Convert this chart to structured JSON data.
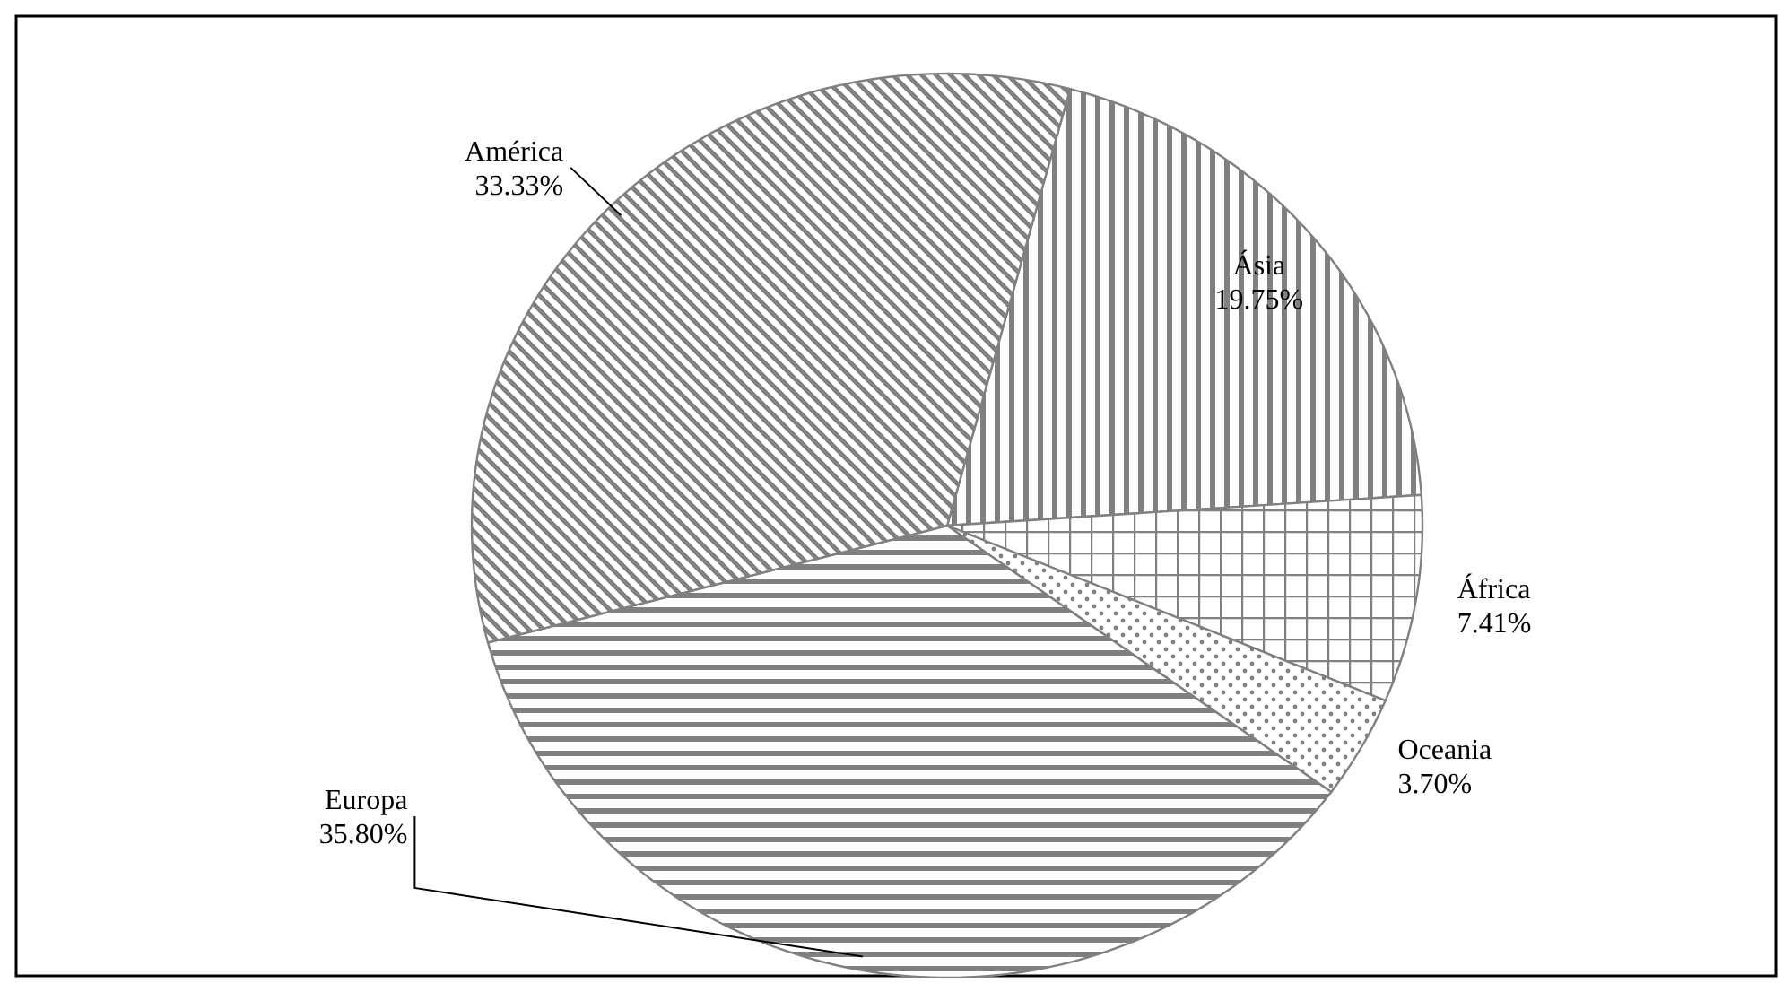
{
  "chart_data": {
    "type": "pie",
    "categories": [
      "Ásia",
      "África",
      "Oceania",
      "Europa",
      "América"
    ],
    "values": [
      19.75,
      7.41,
      3.7,
      35.8,
      33.33
    ],
    "value_labels": [
      "19.75%",
      "7.41%",
      "3.70%",
      "35.80%",
      "33.33%"
    ],
    "colors": [
      "#808080",
      "#808080",
      "#808080",
      "#808080",
      "#808080"
    ],
    "data_labels": true,
    "legend": false
  }
}
